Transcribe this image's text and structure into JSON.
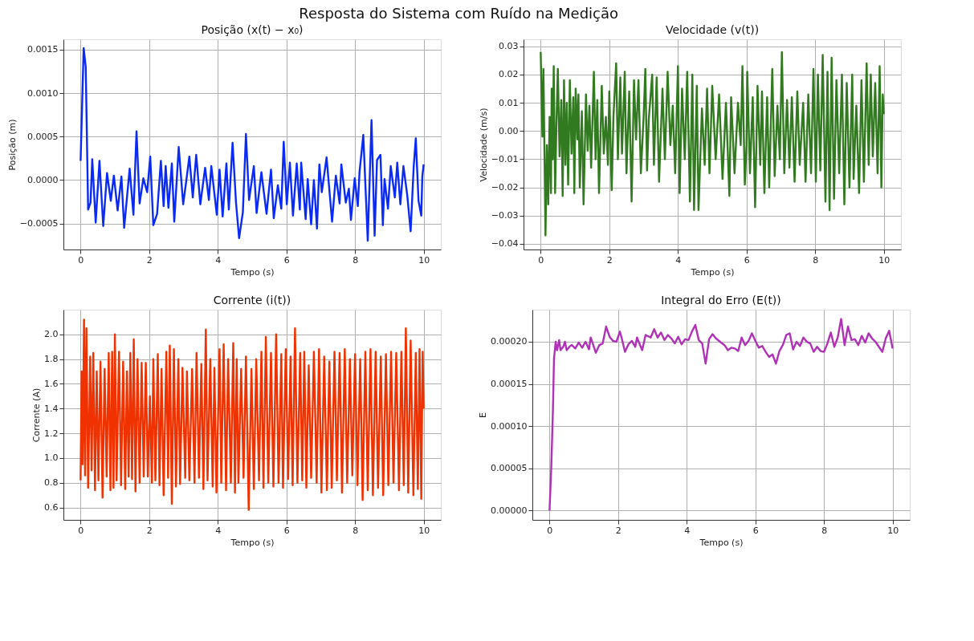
{
  "chart_data": [
    {
      "type": "line",
      "title": "Posição (x(t) − x₀)",
      "xlabel": "Tempo (s)",
      "ylabel": "Posição (m)",
      "annotations": [
        "Resposta do Sistema com Ruído na Medição"
      ],
      "grid": true,
      "xlim": [
        -0.5,
        10.5
      ],
      "xticks": [
        0,
        2,
        4,
        6,
        8,
        10
      ],
      "ylim": [
        -0.0008,
        0.00162
      ],
      "yticks": [
        {
          "value": -0.0005,
          "label": "−0.0005"
        },
        {
          "value": 0,
          "label": "0.0000"
        },
        {
          "value": 0.0005,
          "label": "0.0005"
        },
        {
          "value": 0.001,
          "label": "0.0010"
        },
        {
          "value": 0.0015,
          "label": "0.0015"
        }
      ],
      "series": [
        {
          "color": "#0a2af5",
          "x": [
            0,
            0.09,
            0.15,
            0.22,
            0.29,
            0.34,
            0.44,
            0.55,
            0.66,
            0.77,
            0.88,
            0.97,
            1.08,
            1.19,
            1.27,
            1.43,
            1.54,
            1.63,
            1.72,
            1.83,
            1.94,
            2.03,
            2.12,
            2.23,
            2.34,
            2.42,
            2.48,
            2.56,
            2.66,
            2.73,
            2.86,
            2.99,
            3.08,
            3.17,
            3.27,
            3.37,
            3.49,
            3.63,
            3.74,
            3.81,
            3.97,
            4.05,
            4.14,
            4.25,
            4.32,
            4.43,
            4.53,
            4.62,
            4.73,
            4.82,
            4.91,
            5.05,
            5.13,
            5.27,
            5.42,
            5.55,
            5.63,
            5.75,
            5.85,
            5.92,
            6.01,
            6.1,
            6.19,
            6.3,
            6.39,
            6.43,
            6.56,
            6.62,
            6.72,
            6.8,
            6.89,
            6.96,
            7.03,
            7.17,
            7.33,
            7.44,
            7.55,
            7.6,
            7.73,
            7.82,
            7.88,
            7.99,
            8.08,
            8.13,
            8.24,
            8.37,
            8.48,
            8.57,
            8.64,
            8.74,
            8.81,
            8.86,
            8.96,
            9.04,
            9.16,
            9.23,
            9.32,
            9.41,
            9.52,
            9.62,
            9.71,
            9.77,
            9.85,
            9.93,
            9.96,
            10.0
          ],
          "values": [
            0.00022,
            0.00152,
            0.0013,
            -0.00034,
            -0.00026,
            0.00024,
            -0.00049,
            0.00022,
            -0.00053,
            8e-05,
            -0.00024,
            5e-05,
            -0.00035,
            4e-05,
            -0.00055,
            0.00013,
            -0.0004,
            0.00056,
            -0.00027,
            2e-05,
            -0.00014,
            0.00027,
            -0.00052,
            -0.00039,
            0.00022,
            -0.0003,
            0.00016,
            -0.00032,
            0.00019,
            -0.00048,
            0.00038,
            -0.00028,
            -1e-05,
            0.00027,
            -0.0002,
            0.00029,
            -0.00028,
            0.00014,
            -0.00023,
            0.00016,
            -0.0004,
            0.00012,
            -0.00042,
            0.00019,
            -0.00034,
            0.00043,
            -0.00026,
            -0.00067,
            -0.00037,
            0.00053,
            -0.00023,
            0.00016,
            -0.00038,
            9e-05,
            -0.00039,
            0.00012,
            -0.00044,
            -6e-05,
            -0.00033,
            0.00044,
            -0.00028,
            0.0002,
            -0.00041,
            0.00019,
            -0.00034,
            0.0002,
            -0.00045,
            1e-05,
            -0.00051,
            0,
            -0.00056,
            0.00018,
            -0.00014,
            0.00026,
            -0.00048,
            5e-05,
            -0.00027,
            0.00018,
            -0.00026,
            -0.0001,
            -0.00046,
            2e-05,
            -0.0003,
            9e-05,
            0.00052,
            -0.0007,
            0.00069,
            -0.00064,
            0.00023,
            0.00029,
            -0.00052,
            1e-05,
            -0.00033,
            0.00016,
            -0.0002,
            0.0002,
            -0.00028,
            0.00016,
            -0.00017,
            -0.00059,
            0.00016,
            0.00048,
            -0.00024,
            -0.00041,
            4e-05,
            0.00018
          ]
        }
      ]
    },
    {
      "type": "line",
      "title": "Velocidade (v(t))",
      "xlabel": "Tempo (s)",
      "ylabel": "Velocidade (m/s)",
      "grid": true,
      "xlim": [
        -0.5,
        10.5
      ],
      "xticks": [
        0,
        2,
        4,
        6,
        8,
        10
      ],
      "ylim": [
        -0.042,
        0.0325
      ],
      "yticks": [
        {
          "value": -0.04,
          "label": "−0.04"
        },
        {
          "value": -0.03,
          "label": "−0.03"
        },
        {
          "value": -0.02,
          "label": "−0.02"
        },
        {
          "value": -0.01,
          "label": "−0.01"
        },
        {
          "value": 0,
          "label": "0.00"
        },
        0.01,
        0.02,
        0.03
      ],
      "series": [
        {
          "color": "#327a1f",
          "x": [
            0,
            0.05,
            0.08,
            0.14,
            0.18,
            0.22,
            0.26,
            0.3,
            0.32,
            0.35,
            0.38,
            0.42,
            0.46,
            0.5,
            0.55,
            0.6,
            0.64,
            0.68,
            0.72,
            0.76,
            0.8,
            0.85,
            0.9,
            0.95,
            0.98,
            1.02,
            1.07,
            1.1,
            1.14,
            1.2,
            1.25,
            1.32,
            1.37,
            1.42,
            1.47,
            1.55,
            1.6,
            1.65,
            1.7,
            1.78,
            1.84,
            1.9,
            1.96,
            2.0,
            2.07,
            2.12,
            2.2,
            2.25,
            2.32,
            2.37,
            2.45,
            2.5,
            2.58,
            2.65,
            2.72,
            2.78,
            2.85,
            2.92,
            3.0,
            3.05,
            3.1,
            3.15,
            3.25,
            3.3,
            3.38,
            3.45,
            3.55,
            3.62,
            3.7,
            3.78,
            3.85,
            3.92,
            4.0,
            4.05,
            4.12,
            4.2,
            4.27,
            4.35,
            4.42,
            4.47,
            4.55,
            4.6,
            4.7,
            4.78,
            4.85,
            4.92,
            5.0,
            5.1,
            5.2,
            5.3,
            5.4,
            5.5,
            5.55,
            5.65,
            5.75,
            5.83,
            5.88,
            5.95,
            6.0,
            6.02,
            6.1,
            6.18,
            6.25,
            6.32,
            6.4,
            6.45,
            6.52,
            6.6,
            6.66,
            6.75,
            6.82,
            6.9,
            6.97,
            7.03,
            7.1,
            7.18,
            7.25,
            7.32,
            7.4,
            7.48,
            7.55,
            7.65,
            7.72,
            7.8,
            7.88,
            7.95,
            8.02,
            8.08,
            8.15,
            8.22,
            8.3,
            8.36,
            8.42,
            8.48,
            8.55,
            8.62,
            8.7,
            8.78,
            8.85,
            8.92,
            9.0,
            9.08,
            9.12,
            9.2,
            9.28,
            9.35,
            9.42,
            9.5,
            9.56,
            9.62,
            9.68,
            9.75,
            9.82,
            9.88,
            9.93,
            9.97,
            10.0
          ],
          "values": [
            0.028,
            -0.002,
            0.022,
            -0.037,
            -0.005,
            -0.026,
            0.005,
            -0.022,
            0.015,
            -0.01,
            0.023,
            -0.022,
            0.003,
            0.022,
            -0.009,
            0.011,
            -0.023,
            0.018,
            -0.012,
            0.01,
            -0.019,
            0.018,
            -0.008,
            0.012,
            -0.022,
            0.015,
            -0.003,
            0.013,
            -0.02,
            0.007,
            -0.026,
            0.013,
            -0.007,
            0.009,
            -0.013,
            0.021,
            -0.01,
            0.011,
            -0.022,
            0.016,
            -0.008,
            0.005,
            -0.012,
            0.014,
            -0.021,
            0.005,
            0.024,
            -0.01,
            0.019,
            -0.008,
            0.021,
            -0.015,
            0.014,
            -0.025,
            0.018,
            -0.003,
            0.018,
            -0.015,
            0.005,
            0.022,
            -0.014,
            0.004,
            0.02,
            -0.012,
            0.019,
            -0.018,
            0.015,
            -0.01,
            0.021,
            -0.005,
            0.009,
            -0.015,
            0.023,
            -0.022,
            0.015,
            -0.01,
            0.021,
            -0.025,
            0.02,
            -0.028,
            0.016,
            -0.028,
            0.008,
            -0.012,
            0.015,
            -0.015,
            0.016,
            -0.01,
            0.013,
            -0.017,
            0.01,
            -0.023,
            0.012,
            -0.015,
            0.01,
            -0.005,
            0.023,
            -0.019,
            -0.005,
            0.021,
            -0.015,
            0.012,
            -0.027,
            0.016,
            -0.012,
            0.014,
            -0.022,
            0.012,
            -0.02,
            0.022,
            -0.016,
            0.009,
            -0.01,
            0.028,
            -0.015,
            0.011,
            -0.013,
            0.012,
            -0.018,
            0.014,
            -0.012,
            0.01,
            -0.018,
            0.013,
            -0.015,
            0.022,
            -0.018,
            0.02,
            -0.014,
            0.027,
            -0.025,
            0.021,
            -0.028,
            0.026,
            -0.024,
            0.018,
            -0.015,
            0.02,
            -0.026,
            0.017,
            -0.02,
            0.02,
            -0.017,
            0.009,
            -0.022,
            0.018,
            -0.018,
            0.024,
            -0.012,
            0.02,
            -0.009,
            0.017,
            -0.015,
            0.023,
            -0.02,
            0.013,
            0.006
          ]
        }
      ]
    },
    {
      "type": "line",
      "title": "Corrente (i(t))",
      "xlabel": "Tempo (s)",
      "ylabel": "Corrente (A)",
      "grid": true,
      "xlim": [
        -0.5,
        10.5
      ],
      "xticks": [
        0,
        2,
        4,
        6,
        8,
        10
      ],
      "ylim": [
        0.5,
        2.2
      ],
      "yticks": [
        0.6,
        0.8,
        {
          "value": 1,
          "label": "1.0"
        },
        1.2,
        1.4,
        1.6,
        1.8,
        {
          "value": 2,
          "label": "2.0"
        }
      ],
      "series": [
        {
          "color": "#f03200",
          "x": [
            0,
            0.03,
            0.06,
            0.1,
            0.13,
            0.17,
            0.22,
            0.28,
            0.32,
            0.37,
            0.42,
            0.47,
            0.52,
            0.58,
            0.64,
            0.7,
            0.76,
            0.82,
            0.87,
            0.92,
            0.96,
            1.0,
            1.05,
            1.12,
            1.18,
            1.24,
            1.3,
            1.35,
            1.4,
            1.45,
            1.5,
            1.55,
            1.6,
            1.66,
            1.72,
            1.78,
            1.84,
            1.9,
            1.96,
            2.02,
            2.08,
            2.12,
            2.18,
            2.25,
            2.3,
            2.36,
            2.42,
            2.5,
            2.55,
            2.6,
            2.66,
            2.72,
            2.78,
            2.85,
            2.9,
            2.97,
            3.05,
            3.1,
            3.17,
            3.25,
            3.32,
            3.38,
            3.45,
            3.52,
            3.58,
            3.65,
            3.7,
            3.78,
            3.85,
            3.9,
            3.96,
            4.05,
            4.1,
            4.17,
            4.24,
            4.3,
            4.38,
            4.45,
            4.5,
            4.55,
            4.6,
            4.68,
            4.75,
            4.82,
            4.9,
            4.98,
            5.05,
            5.12,
            5.2,
            5.27,
            5.33,
            5.4,
            5.47,
            5.55,
            5.62,
            5.7,
            5.77,
            5.85,
            5.9,
            5.98,
            6.05,
            6.12,
            6.18,
            6.25,
            6.32,
            6.4,
            6.46,
            6.52,
            6.58,
            6.65,
            6.72,
            6.8,
            6.88,
            6.95,
            7.02,
            7.1,
            7.18,
            7.25,
            7.32,
            7.4,
            7.47,
            7.55,
            7.62,
            7.7,
            7.77,
            7.85,
            7.92,
            8.0,
            8.07,
            8.15,
            8.22,
            8.3,
            8.37,
            8.45,
            8.52,
            8.6,
            8.67,
            8.75,
            8.82,
            8.9,
            8.97,
            9.05,
            9.12,
            9.2,
            9.28,
            9.35,
            9.42,
            9.48,
            9.55,
            9.62,
            9.7,
            9.77,
            9.83,
            9.88,
            9.93,
            9.97,
            10.0
          ],
          "values": [
            0.82,
            1.7,
            0.95,
            2.12,
            0.86,
            2.05,
            0.76,
            1.82,
            0.9,
            1.85,
            0.74,
            1.7,
            0.82,
            1.78,
            0.68,
            1.72,
            0.85,
            1.85,
            0.74,
            1.86,
            0.76,
            2.0,
            0.82,
            1.86,
            0.78,
            1.78,
            0.75,
            1.7,
            0.85,
            1.85,
            0.83,
            1.96,
            0.73,
            1.8,
            0.8,
            1.77,
            0.85,
            1.77,
            0.85,
            1.5,
            0.8,
            1.8,
            0.82,
            1.84,
            0.78,
            1.72,
            0.7,
            1.86,
            0.84,
            1.91,
            0.63,
            1.88,
            0.77,
            1.8,
            0.79,
            1.73,
            0.84,
            1.7,
            0.82,
            1.72,
            0.8,
            1.85,
            0.84,
            1.76,
            0.75,
            2.04,
            0.82,
            1.8,
            0.77,
            1.73,
            0.72,
            1.88,
            0.8,
            1.92,
            0.74,
            1.8,
            0.8,
            1.93,
            0.72,
            1.8,
            0.8,
            1.72,
            0.84,
            1.82,
            0.58,
            1.72,
            0.75,
            1.8,
            0.82,
            1.86,
            0.76,
            1.98,
            0.8,
            1.85,
            0.77,
            2.0,
            0.8,
            1.84,
            0.76,
            1.88,
            0.83,
            1.82,
            0.78,
            2.05,
            0.8,
            1.85,
            0.82,
            1.86,
            0.76,
            1.75,
            0.84,
            1.86,
            0.8,
            1.88,
            0.72,
            1.82,
            0.74,
            1.78,
            0.76,
            1.86,
            0.82,
            1.85,
            0.72,
            1.88,
            0.8,
            1.8,
            0.86,
            1.84,
            0.78,
            1.8,
            0.66,
            1.86,
            0.74,
            1.88,
            0.7,
            1.86,
            0.76,
            1.82,
            0.7,
            1.84,
            0.78,
            1.86,
            0.8,
            1.85,
            0.74,
            1.86,
            0.78,
            2.05,
            0.72,
            1.95,
            0.7,
            1.85,
            0.75,
            1.88,
            0.67,
            1.86,
            1.4
          ]
        }
      ]
    },
    {
      "type": "line",
      "title": "Integral do Erro (E(t))",
      "xlabel": "Tempo (s)",
      "ylabel": "E",
      "grid": true,
      "xlim": [
        -0.5,
        10.5
      ],
      "xticks": [
        0,
        2,
        4,
        6,
        8,
        10
      ],
      "ylim": [
        -1.1e-05,
        0.000238
      ],
      "yticks": [
        {
          "value": 0,
          "label": "0.00000"
        },
        {
          "value": 5e-05,
          "label": "0.00005"
        },
        {
          "value": 0.0001,
          "label": "0.00010"
        },
        {
          "value": 0.00015,
          "label": "0.00015"
        },
        {
          "value": 0.0002,
          "label": "0.00020"
        }
      ],
      "series": [
        {
          "color": "#b030b8",
          "x": [
            0,
            0.05,
            0.1,
            0.13,
            0.18,
            0.22,
            0.28,
            0.32,
            0.4,
            0.45,
            0.5,
            0.6,
            0.65,
            0.75,
            0.85,
            0.95,
            1.05,
            1.15,
            1.2,
            1.35,
            1.45,
            1.55,
            1.65,
            1.75,
            1.85,
            1.95,
            2.05,
            2.1,
            2.2,
            2.3,
            2.4,
            2.5,
            2.55,
            2.7,
            2.8,
            2.95,
            3.05,
            3.15,
            3.25,
            3.35,
            3.45,
            3.55,
            3.65,
            3.75,
            3.85,
            3.95,
            4.05,
            4.15,
            4.25,
            4.35,
            4.45,
            4.55,
            4.65,
            4.75,
            4.85,
            5.0,
            5.1,
            5.2,
            5.3,
            5.4,
            5.5,
            5.6,
            5.7,
            5.8,
            5.9,
            6.0,
            6.1,
            6.2,
            6.3,
            6.4,
            6.5,
            6.6,
            6.7,
            6.8,
            6.9,
            7.0,
            7.1,
            7.2,
            7.3,
            7.4,
            7.5,
            7.6,
            7.7,
            7.8,
            7.9,
            8.0,
            8.1,
            8.2,
            8.3,
            8.4,
            8.5,
            8.6,
            8.7,
            8.8,
            8.9,
            9.0,
            9.1,
            9.2,
            9.3,
            9.4,
            9.5,
            9.6,
            9.7,
            9.8,
            9.9,
            10.0
          ],
          "values": [
            0,
            5e-05,
            0.00012,
            0.00018,
            0.0002,
            0.00019,
            0.000202,
            0.00019,
            0.000194,
            0.0002,
            0.00019,
            0.000195,
            0.000196,
            0.000192,
            0.000199,
            0.000193,
            0.0002,
            0.000191,
            0.000205,
            0.000187,
            0.000196,
            0.000198,
            0.000218,
            0.000206,
            0.000201,
            0.0002,
            0.000212,
            0.000205,
            0.000188,
            0.000197,
            0.000201,
            0.000194,
            0.000205,
            0.00019,
            0.000208,
            0.000205,
            0.000215,
            0.000205,
            0.000211,
            0.000202,
            0.000208,
            0.000204,
            0.000198,
            0.000206,
            0.000197,
            0.000203,
            0.000202,
            0.000212,
            0.00022,
            0.000202,
            0.000198,
            0.000174,
            0.000203,
            0.000209,
            0.000204,
            0.000199,
            0.000196,
            0.00019,
            0.000193,
            0.000192,
            0.000189,
            0.000205,
            0.000196,
            0.000201,
            0.00021,
            0.000201,
            0.000193,
            0.000195,
            0.000188,
            0.000182,
            0.000185,
            0.000174,
            0.000189,
            0.000196,
            0.000208,
            0.00021,
            0.000191,
            0.0002,
            0.000195,
            0.000205,
            0.0002,
            0.000198,
            0.000188,
            0.000194,
            0.000189,
            0.000188,
            0.000198,
            0.000211,
            0.000194,
            0.000205,
            0.000227,
            0.000196,
            0.000218,
            0.000202,
            0.000203,
            0.000196,
            0.000207,
            0.000199,
            0.00021,
            0.000204,
            0.0002,
            0.000194,
            0.000188,
            0.000204,
            0.000213,
            0.000192
          ]
        }
      ]
    }
  ]
}
